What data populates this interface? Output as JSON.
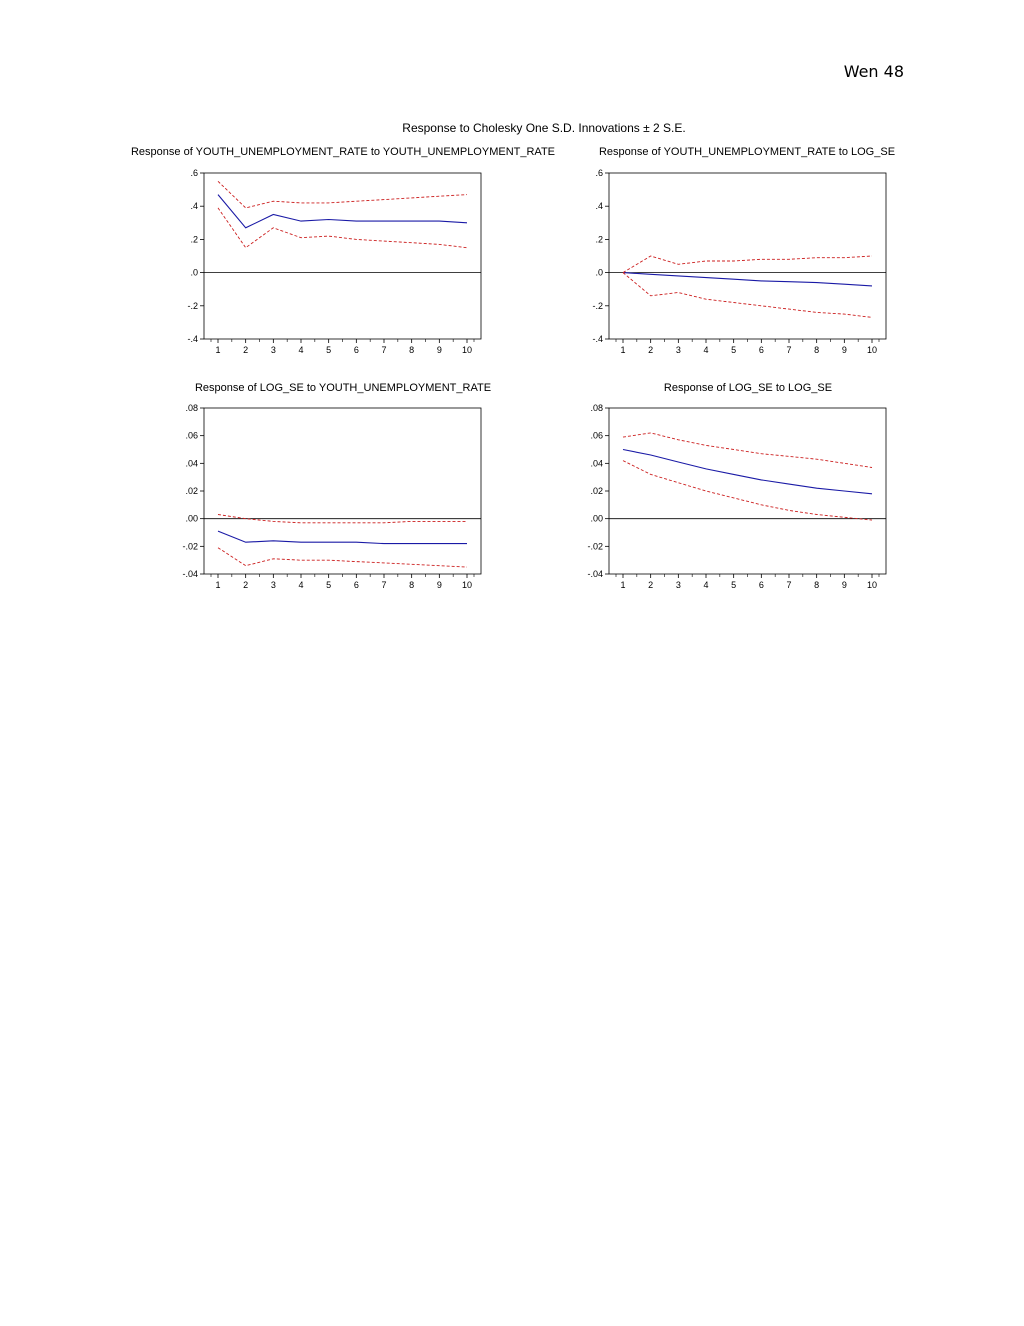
{
  "page_header": "Wen 48",
  "figure_title": "Response to Cholesky One S.D. Innovations ± 2 S.E.",
  "colors": {
    "response": "#1a1aa6",
    "bands": "#cc1f1f",
    "frame": "#000000"
  },
  "chart_data": [
    {
      "type": "line",
      "title": "Response of YOUTH_UNEMPLOYMENT_RATE to YOUTH_UNEMPLOYMENT_RATE",
      "x": [
        1,
        2,
        3,
        4,
        5,
        6,
        7,
        8,
        9,
        10
      ],
      "ylim": [
        -0.4,
        0.6
      ],
      "yticks": [
        -0.4,
        -0.2,
        0.0,
        0.2,
        0.4,
        0.6
      ],
      "ytick_labels": [
        "-.4",
        "-.2",
        ".0",
        ".2",
        ".4",
        ".6"
      ],
      "series": [
        {
          "role": "response",
          "values": [
            0.47,
            0.27,
            0.35,
            0.31,
            0.32,
            0.31,
            0.31,
            0.31,
            0.31,
            0.3
          ]
        },
        {
          "role": "upper",
          "values": [
            0.55,
            0.39,
            0.43,
            0.42,
            0.42,
            0.43,
            0.44,
            0.45,
            0.46,
            0.47
          ]
        },
        {
          "role": "lower",
          "values": [
            0.39,
            0.15,
            0.27,
            0.21,
            0.22,
            0.2,
            0.19,
            0.18,
            0.17,
            0.15
          ]
        }
      ]
    },
    {
      "type": "line",
      "title": "Response of YOUTH_UNEMPLOYMENT_RATE to LOG_SE",
      "x": [
        1,
        2,
        3,
        4,
        5,
        6,
        7,
        8,
        9,
        10
      ],
      "ylim": [
        -0.4,
        0.6
      ],
      "yticks": [
        -0.4,
        -0.2,
        0.0,
        0.2,
        0.4,
        0.6
      ],
      "ytick_labels": [
        "-.4",
        "-.2",
        ".0",
        ".2",
        ".4",
        ".6"
      ],
      "series": [
        {
          "role": "response",
          "values": [
            0.0,
            -0.01,
            -0.02,
            -0.03,
            -0.04,
            -0.05,
            -0.055,
            -0.06,
            -0.07,
            -0.08
          ]
        },
        {
          "role": "upper",
          "values": [
            0.0,
            0.1,
            0.05,
            0.07,
            0.07,
            0.08,
            0.08,
            0.09,
            0.09,
            0.1
          ]
        },
        {
          "role": "lower",
          "values": [
            0.0,
            -0.14,
            -0.12,
            -0.16,
            -0.18,
            -0.2,
            -0.22,
            -0.24,
            -0.25,
            -0.27
          ]
        }
      ]
    },
    {
      "type": "line",
      "title": "Response of LOG_SE to YOUTH_UNEMPLOYMENT_RATE",
      "x": [
        1,
        2,
        3,
        4,
        5,
        6,
        7,
        8,
        9,
        10
      ],
      "ylim": [
        -0.04,
        0.08
      ],
      "yticks": [
        -0.04,
        -0.02,
        0.0,
        0.02,
        0.04,
        0.06,
        0.08
      ],
      "ytick_labels": [
        "-.04",
        "-.02",
        ".00",
        ".02",
        ".04",
        ".06",
        ".08"
      ],
      "series": [
        {
          "role": "response",
          "values": [
            -0.009,
            -0.017,
            -0.016,
            -0.017,
            -0.017,
            -0.017,
            -0.018,
            -0.018,
            -0.018,
            -0.018
          ]
        },
        {
          "role": "upper",
          "values": [
            0.003,
            0.0,
            -0.002,
            -0.003,
            -0.003,
            -0.003,
            -0.003,
            -0.002,
            -0.002,
            -0.002
          ]
        },
        {
          "role": "lower",
          "values": [
            -0.021,
            -0.034,
            -0.029,
            -0.03,
            -0.03,
            -0.031,
            -0.032,
            -0.033,
            -0.034,
            -0.035
          ]
        }
      ]
    },
    {
      "type": "line",
      "title": "Response of LOG_SE to LOG_SE",
      "x": [
        1,
        2,
        3,
        4,
        5,
        6,
        7,
        8,
        9,
        10
      ],
      "ylim": [
        -0.04,
        0.08
      ],
      "yticks": [
        -0.04,
        -0.02,
        0.0,
        0.02,
        0.04,
        0.06,
        0.08
      ],
      "ytick_labels": [
        "-.04",
        "-.02",
        ".00",
        ".02",
        ".04",
        ".06",
        ".08"
      ],
      "series": [
        {
          "role": "response",
          "values": [
            0.05,
            0.046,
            0.041,
            0.036,
            0.032,
            0.028,
            0.025,
            0.022,
            0.02,
            0.018
          ]
        },
        {
          "role": "upper",
          "values": [
            0.059,
            0.062,
            0.057,
            0.053,
            0.05,
            0.047,
            0.045,
            0.043,
            0.04,
            0.037
          ]
        },
        {
          "role": "lower",
          "values": [
            0.042,
            0.032,
            0.026,
            0.02,
            0.015,
            0.01,
            0.006,
            0.003,
            0.001,
            -0.001
          ]
        }
      ]
    }
  ]
}
